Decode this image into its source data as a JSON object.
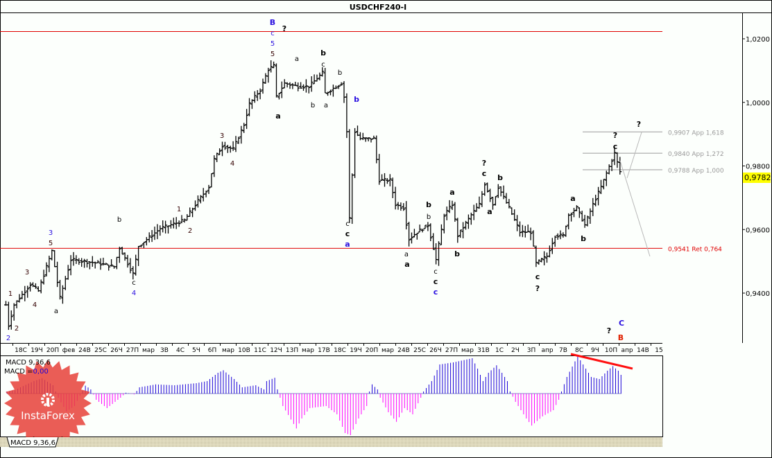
{
  "window": {
    "title": "USDCHF240-I"
  },
  "colors": {
    "background": "#fcfffc",
    "bars": "#000000",
    "level_red": "#e00000",
    "fib_grey": "#9a9a9a",
    "macd_pos": "#1a00d8",
    "macd_neg": "#ff00ff",
    "price_tag": "#ffff00",
    "wave_blue": "#2a10e0",
    "wave_red": "#e02000",
    "logo": "#e8413a"
  },
  "price_axis": {
    "ticks": [
      "1,0200",
      "1,0000",
      "0,9800",
      "0,9600",
      "0,9400"
    ],
    "current_price": "0,9782"
  },
  "time_axis": {
    "labels": [
      "18С",
      "19Ч",
      "20П",
      "фев",
      "24В",
      "25С",
      "26Ч",
      "27П",
      "мар",
      "3В",
      "4С",
      "5Ч",
      "6П",
      "мар",
      "10В",
      "11С",
      "12Ч",
      "13П",
      "мар",
      "17В",
      "18С",
      "19Ч",
      "20П",
      "мар",
      "24В",
      "25С",
      "26Ч",
      "27П",
      "мар",
      "31В",
      "1С",
      "2Ч",
      "3П",
      "апр",
      "7В",
      "8С",
      "9Ч",
      "10П",
      "апр",
      "14В",
      "15"
    ]
  },
  "levels": [
    {
      "price": 0.9907,
      "label": "0,9907 App 1,618",
      "color": "#9a9a9a"
    },
    {
      "price": 0.984,
      "label": "0,9840 App 1,272",
      "color": "#9a9a9a"
    },
    {
      "price": 0.9788,
      "label": "0,9788 App 1,000",
      "color": "#9a9a9a"
    },
    {
      "price": 0.9541,
      "label": "0,9541 Ret 0,764",
      "color": "#e00000"
    }
  ],
  "wave_labels": [
    {
      "text": "2",
      "color": "#2a10e0",
      "bold": false
    },
    {
      "text": "2",
      "color": "#330000",
      "bold": false
    },
    {
      "text": "1",
      "color": "#330000",
      "bold": false
    },
    {
      "text": "3",
      "color": "#330000",
      "bold": false
    },
    {
      "text": "4",
      "color": "#330000",
      "bold": false
    },
    {
      "text": "3",
      "color": "#2a10e0",
      "bold": false
    },
    {
      "text": "5",
      "color": "#330000",
      "bold": false
    },
    {
      "text": "a",
      "color": "#000",
      "bold": false
    },
    {
      "text": "b",
      "color": "#000",
      "bold": false
    },
    {
      "text": "c",
      "color": "#000",
      "bold": false
    },
    {
      "text": "4",
      "color": "#2a10e0",
      "bold": false
    },
    {
      "text": "1",
      "color": "#330000",
      "bold": false
    },
    {
      "text": "2",
      "color": "#330000",
      "bold": false
    },
    {
      "text": "3",
      "color": "#330000",
      "bold": false
    },
    {
      "text": "4",
      "color": "#330000",
      "bold": false
    },
    {
      "text": "B",
      "color": "#2a10e0",
      "bold": true
    },
    {
      "text": "c",
      "color": "#2a10e0",
      "bold": false
    },
    {
      "text": "5",
      "color": "#2a10e0",
      "bold": false
    },
    {
      "text": "5",
      "color": "#330000",
      "bold": false
    },
    {
      "text": "?",
      "color": "#000",
      "bold": true
    },
    {
      "text": "a",
      "color": "#000",
      "bold": false
    },
    {
      "text": "a",
      "color": "#000",
      "bold": true
    },
    {
      "text": "b",
      "color": "#000",
      "bold": true
    },
    {
      "text": "c",
      "color": "#000",
      "bold": false
    },
    {
      "text": "b",
      "color": "#000",
      "bold": false
    },
    {
      "text": "a",
      "color": "#000",
      "bold": false
    },
    {
      "text": "b",
      "color": "#000",
      "bold": false
    },
    {
      "text": "b",
      "color": "#2a10e0",
      "bold": true
    },
    {
      "text": "c",
      "color": "#000",
      "bold": false
    },
    {
      "text": "c",
      "color": "#000",
      "bold": true
    },
    {
      "text": "a",
      "color": "#2a10e0",
      "bold": true
    },
    {
      "text": "a",
      "color": "#000",
      "bold": false
    },
    {
      "text": "a",
      "color": "#000",
      "bold": true
    },
    {
      "text": "b",
      "color": "#000",
      "bold": true
    },
    {
      "text": "b",
      "color": "#000",
      "bold": false
    },
    {
      "text": "c",
      "color": "#000",
      "bold": false
    },
    {
      "text": "c",
      "color": "#000",
      "bold": true
    },
    {
      "text": "c",
      "color": "#2a10e0",
      "bold": true
    },
    {
      "text": "a",
      "color": "#000",
      "bold": true
    },
    {
      "text": "b",
      "color": "#000",
      "bold": true
    },
    {
      "text": "?",
      "color": "#000",
      "bold": true
    },
    {
      "text": "c",
      "color": "#000",
      "bold": true
    },
    {
      "text": "b",
      "color": "#000",
      "bold": true
    },
    {
      "text": "a",
      "color": "#000",
      "bold": true
    },
    {
      "text": "c",
      "color": "#000",
      "bold": true
    },
    {
      "text": "?",
      "color": "#000",
      "bold": true
    },
    {
      "text": "a",
      "color": "#000",
      "bold": true
    },
    {
      "text": "b",
      "color": "#000",
      "bold": true
    },
    {
      "text": "?",
      "color": "#000",
      "bold": true
    },
    {
      "text": "c",
      "color": "#000",
      "bold": true
    },
    {
      "text": "?",
      "color": "#000",
      "bold": true
    },
    {
      "text": "?",
      "color": "#000",
      "bold": true
    },
    {
      "text": "C",
      "color": "#2a10e0",
      "bold": true
    },
    {
      "text": "B",
      "color": "#e02000",
      "bold": true
    }
  ],
  "macd": {
    "title": "MACD 9,36,6",
    "value_label": "MACD =",
    "value": "0,00",
    "tab_label": "MACD 9,36,6"
  },
  "logo": {
    "text": "InstaForex"
  },
  "chart_data": [
    {
      "type": "ohlc",
      "title": "USDCHF240-I",
      "ylim": [
        0.9262,
        1.03
      ],
      "grid": false,
      "close_waypoints_bar_price": [
        [
          0,
          0.9363
        ],
        [
          1,
          0.9298
        ],
        [
          3,
          0.9363
        ],
        [
          9,
          0.9428
        ],
        [
          12,
          0.9407
        ],
        [
          17,
          0.9533
        ],
        [
          20,
          0.9385
        ],
        [
          24,
          0.9505
        ],
        [
          34,
          0.9494
        ],
        [
          40,
          0.9483
        ],
        [
          42,
          0.9542
        ],
        [
          47,
          0.9461
        ],
        [
          49,
          0.9548
        ],
        [
          57,
          0.9603
        ],
        [
          66,
          0.9629
        ],
        [
          71,
          0.969
        ],
        [
          75,
          0.9734
        ],
        [
          77,
          0.9821
        ],
        [
          80,
          0.9864
        ],
        [
          84,
          0.9853
        ],
        [
          88,
          0.993
        ],
        [
          90,
          0.9995
        ],
        [
          94,
          1.0039
        ],
        [
          97,
          1.0104
        ],
        [
          99,
          1.0115
        ],
        [
          100,
          1.0017
        ],
        [
          103,
          1.006
        ],
        [
          108,
          1.005
        ],
        [
          112,
          1.005
        ],
        [
          117,
          1.0093
        ],
        [
          118,
          1.0028
        ],
        [
          124,
          1.006
        ],
        [
          125,
          1.0017
        ],
        [
          126,
          0.9908
        ],
        [
          127,
          0.9635
        ],
        [
          129,
          0.9908
        ],
        [
          131,
          0.9886
        ],
        [
          136,
          0.9886
        ],
        [
          138,
          0.9755
        ],
        [
          142,
          0.9755
        ],
        [
          144,
          0.9679
        ],
        [
          147,
          0.9668
        ],
        [
          149,
          0.957
        ],
        [
          152,
          0.9592
        ],
        [
          156,
          0.9614
        ],
        [
          159,
          0.9505
        ],
        [
          162,
          0.9646
        ],
        [
          165,
          0.9679
        ],
        [
          167,
          0.9581
        ],
        [
          172,
          0.9646
        ],
        [
          175,
          0.9679
        ],
        [
          177,
          0.9744
        ],
        [
          180,
          0.9679
        ],
        [
          182,
          0.9734
        ],
        [
          186,
          0.9668
        ],
        [
          190,
          0.9592
        ],
        [
          194,
          0.9592
        ],
        [
          196,
          0.9494
        ],
        [
          200,
          0.9516
        ],
        [
          203,
          0.9581
        ],
        [
          206,
          0.9581
        ],
        [
          208,
          0.9646
        ],
        [
          211,
          0.9668
        ],
        [
          214,
          0.9614
        ],
        [
          217,
          0.9679
        ],
        [
          220,
          0.9734
        ],
        [
          222,
          0.9777
        ],
        [
          225,
          0.984
        ],
        [
          227,
          0.9782
        ]
      ],
      "last_price": 0.9782
    },
    {
      "type": "bar",
      "title": "MACD 9,36,6",
      "note_scale": "relative (fraction of largest bar)",
      "histogram_waypoints_bar_value": [
        [
          0,
          0.05
        ],
        [
          3,
          0.08
        ],
        [
          5,
          0.15
        ],
        [
          10,
          0.3
        ],
        [
          13,
          0.37
        ],
        [
          17,
          0.2
        ],
        [
          19,
          -0.1
        ],
        [
          22,
          -0.43
        ],
        [
          25,
          -0.3
        ],
        [
          27,
          -0.05
        ],
        [
          29,
          0.19
        ],
        [
          31,
          0.1
        ],
        [
          33,
          -0.15
        ],
        [
          37,
          -0.35
        ],
        [
          42,
          -0.1
        ],
        [
          44,
          0.02
        ],
        [
          47,
          -0.02
        ],
        [
          49,
          0.15
        ],
        [
          55,
          0.22
        ],
        [
          62,
          0.2
        ],
        [
          70,
          0.25
        ],
        [
          74,
          0.3
        ],
        [
          78,
          0.5
        ],
        [
          80,
          0.56
        ],
        [
          84,
          0.35
        ],
        [
          87,
          0.15
        ],
        [
          92,
          0.2
        ],
        [
          95,
          0.1
        ],
        [
          96,
          0.3
        ],
        [
          99,
          0.38
        ],
        [
          100,
          0.1
        ],
        [
          102,
          -0.3
        ],
        [
          107,
          -0.84
        ],
        [
          109,
          -0.6
        ],
        [
          112,
          -0.35
        ],
        [
          118,
          -0.3
        ],
        [
          122,
          -0.5
        ],
        [
          125,
          -0.95
        ],
        [
          127,
          -1.0
        ],
        [
          130,
          -0.6
        ],
        [
          133,
          -0.3
        ],
        [
          134,
          0.05
        ],
        [
          135,
          0.22
        ],
        [
          137,
          0.1
        ],
        [
          138,
          -0.1
        ],
        [
          141,
          -0.45
        ],
        [
          144,
          -0.68
        ],
        [
          147,
          -0.35
        ],
        [
          150,
          -0.5
        ],
        [
          153,
          -0.1
        ],
        [
          154,
          0.05
        ],
        [
          157,
          0.3
        ],
        [
          160,
          0.7
        ],
        [
          165,
          0.75
        ],
        [
          170,
          0.82
        ],
        [
          172,
          0.85
        ],
        [
          174,
          0.6
        ],
        [
          176,
          0.3
        ],
        [
          178,
          0.5
        ],
        [
          181,
          0.68
        ],
        [
          183,
          0.5
        ],
        [
          185,
          0.3
        ],
        [
          186,
          0.05
        ],
        [
          188,
          -0.2
        ],
        [
          192,
          -0.6
        ],
        [
          194,
          -0.77
        ],
        [
          198,
          -0.55
        ],
        [
          202,
          -0.4
        ],
        [
          204,
          -0.15
        ],
        [
          205,
          0.05
        ],
        [
          207,
          0.4
        ],
        [
          211,
          0.9
        ],
        [
          213,
          0.7
        ],
        [
          216,
          0.4
        ],
        [
          219,
          0.35
        ],
        [
          222,
          0.55
        ],
        [
          224,
          0.66
        ],
        [
          226,
          0.55
        ],
        [
          227,
          0.45
        ]
      ],
      "divergence_line": "red, falling across last histogram peaks"
    }
  ]
}
